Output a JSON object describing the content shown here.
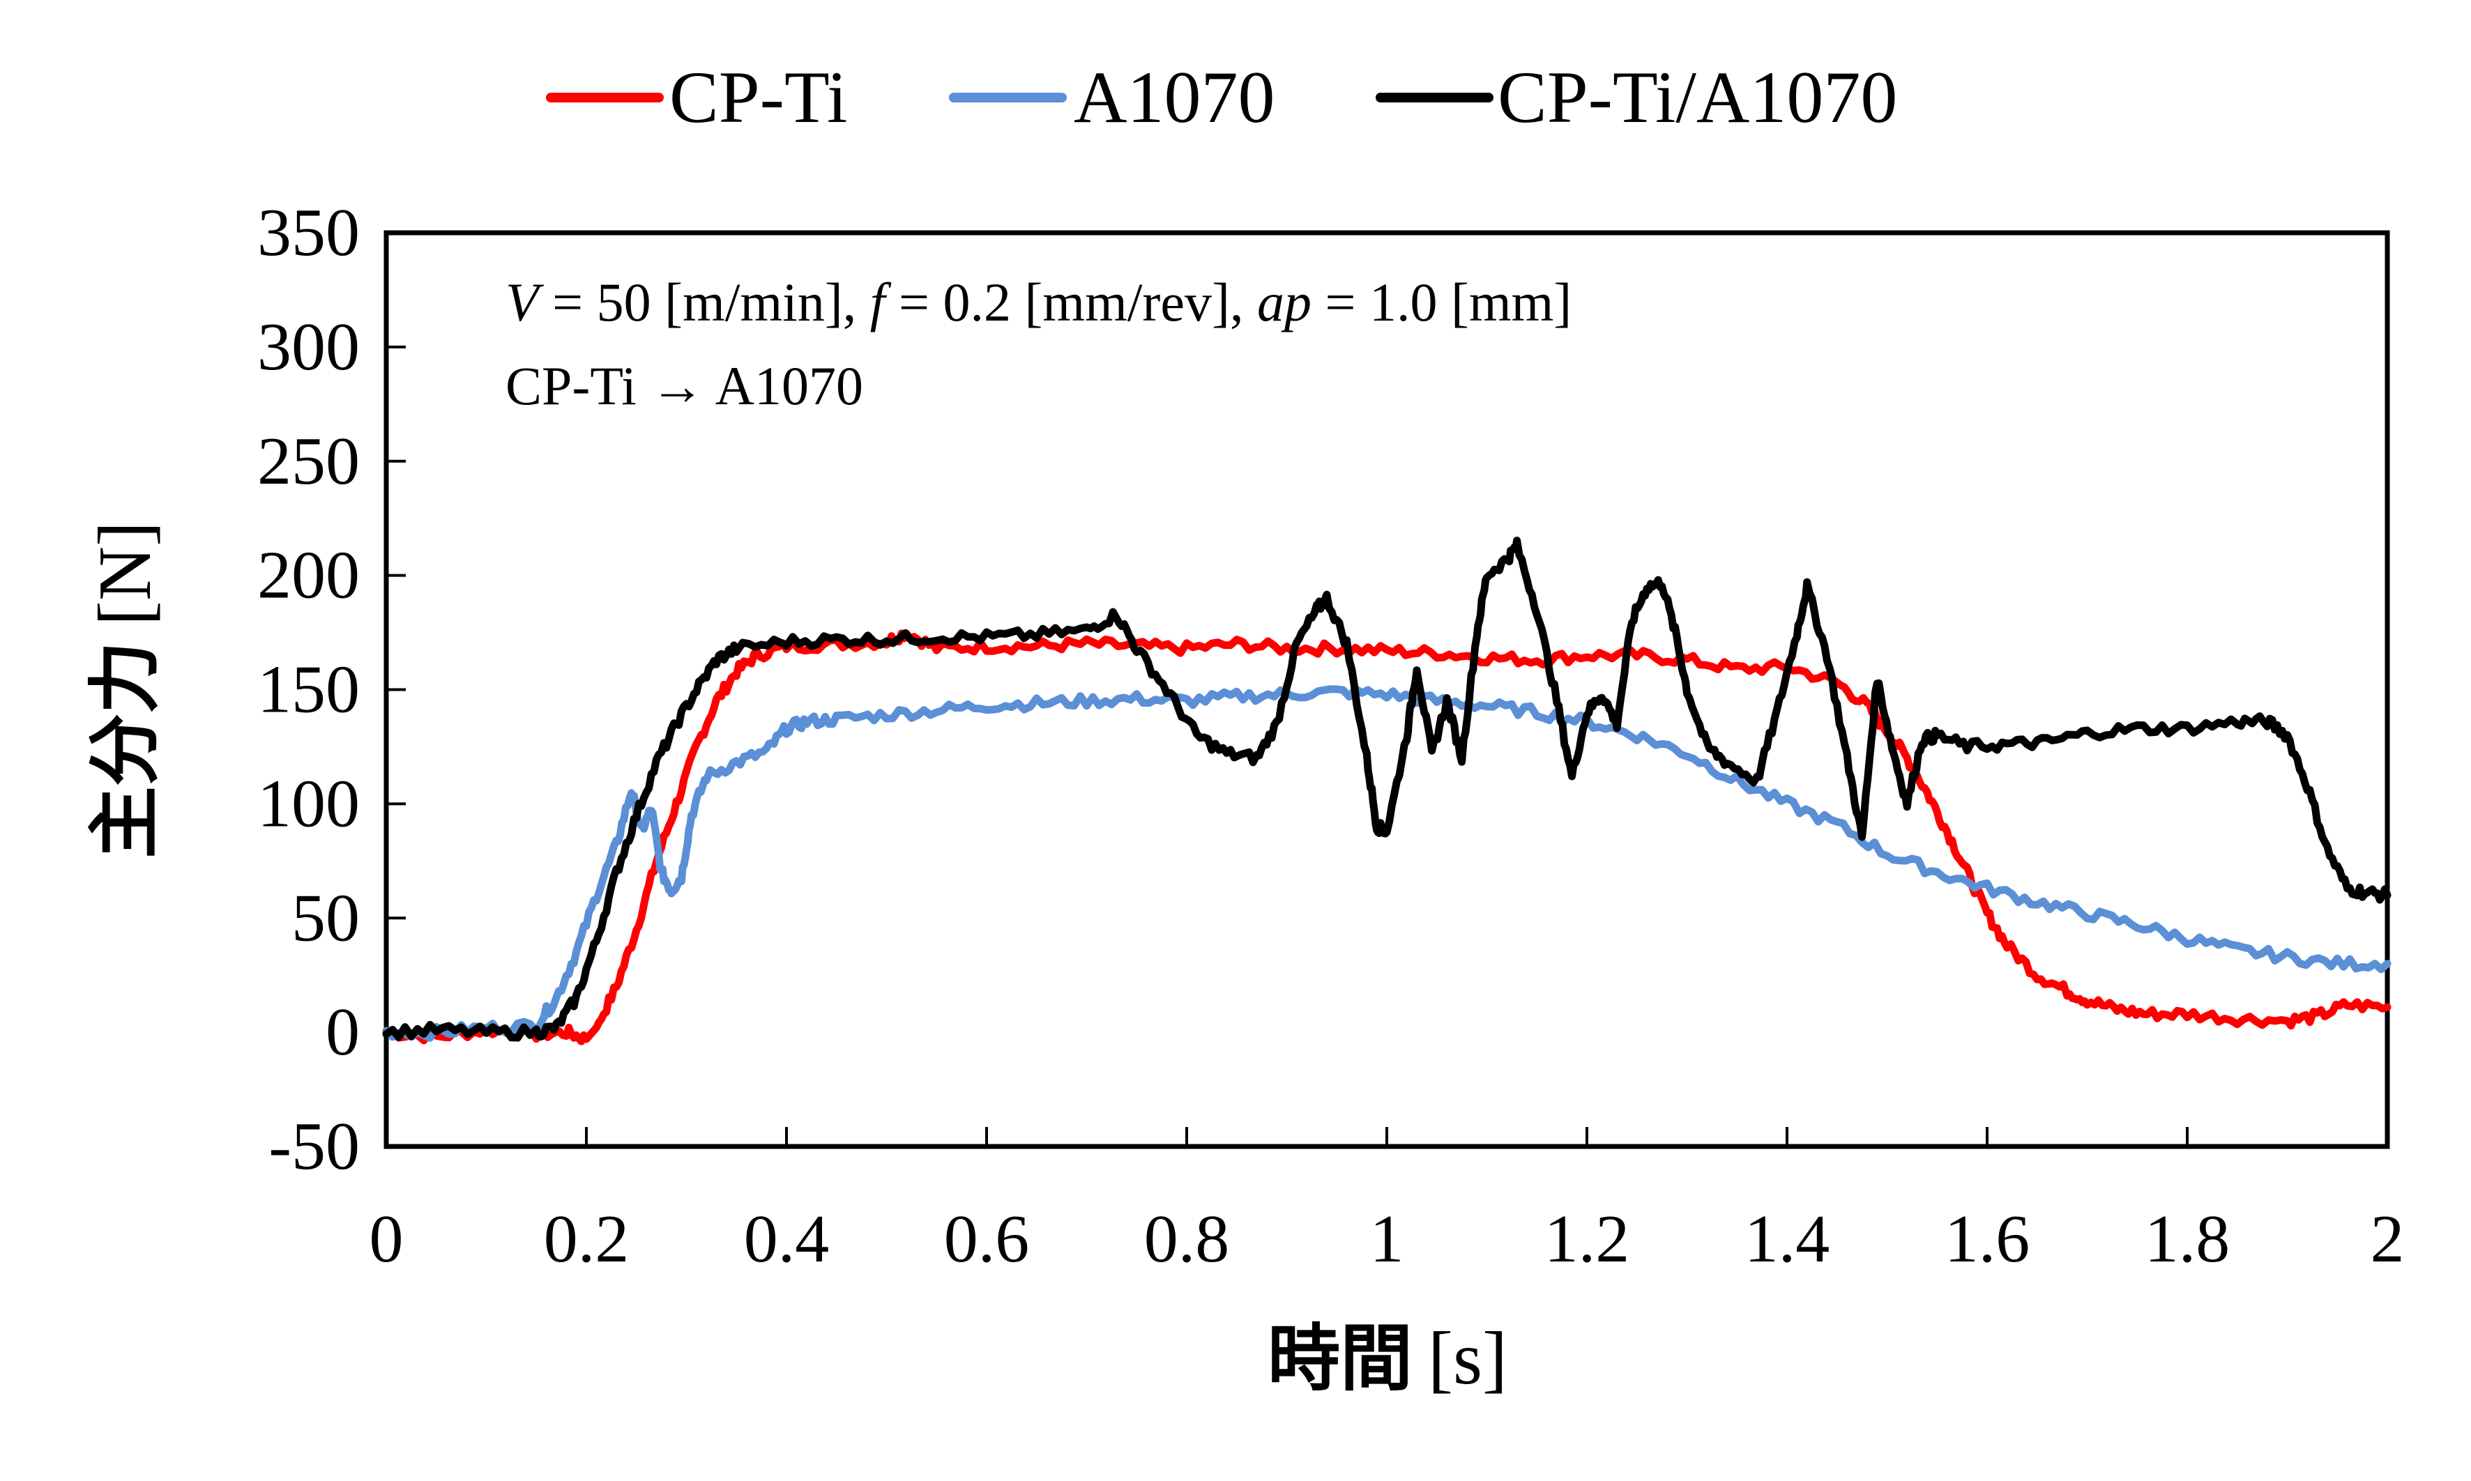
{
  "chart_data": {
    "type": "line",
    "title": "",
    "xlabel_main": "時間",
    "xlabel_unit": "[s]",
    "ylabel_main": "主分力",
    "ylabel_unit": "[N]",
    "xlim": [
      0,
      2
    ],
    "ylim": [
      -50,
      350
    ],
    "xticks": [
      0,
      0.2,
      0.4,
      0.6,
      0.8,
      1,
      1.2,
      1.4,
      1.6,
      1.8,
      2
    ],
    "xtick_labels": [
      "0",
      "0.2",
      "0.4",
      "0.6",
      "0.8",
      "1",
      "1.2",
      "1.4",
      "1.6",
      "1.8",
      "2"
    ],
    "yticks": [
      -50,
      0,
      50,
      100,
      150,
      200,
      250,
      300,
      350
    ],
    "ytick_labels": [
      "-50",
      "0",
      "50",
      "100",
      "150",
      "200",
      "250",
      "300",
      "350"
    ],
    "grid": false,
    "legend_position": "top-center",
    "annotations": [
      {
        "parts": [
          {
            "text": "V",
            "italic": true
          },
          {
            "text": " = 50 [m/min], ",
            "italic": false
          },
          {
            "text": "f",
            "italic": true
          },
          {
            "text": " = 0.2 [mm/rev], ",
            "italic": false
          },
          {
            "text": "ap",
            "italic": true
          },
          {
            "text": " = 1.0 [mm]",
            "italic": false
          }
        ]
      },
      {
        "parts": [
          {
            "text": "CP-Ti → A1070",
            "italic": false
          }
        ]
      }
    ],
    "series": [
      {
        "name": "CP-Ti",
        "color": "#ff0000",
        "points": [
          [
            0,
            0
          ],
          [
            0.05,
            -2
          ],
          [
            0.1,
            1
          ],
          [
            0.15,
            -1
          ],
          [
            0.18,
            0
          ],
          [
            0.2,
            -3
          ],
          [
            0.21,
            2
          ],
          [
            0.23,
            20
          ],
          [
            0.25,
            45
          ],
          [
            0.27,
            75
          ],
          [
            0.29,
            100
          ],
          [
            0.31,
            125
          ],
          [
            0.33,
            145
          ],
          [
            0.35,
            158
          ],
          [
            0.37,
            165
          ],
          [
            0.4,
            169
          ],
          [
            0.45,
            170
          ],
          [
            0.5,
            171
          ],
          [
            0.52,
            175
          ],
          [
            0.55,
            168
          ],
          [
            0.6,
            169
          ],
          [
            0.65,
            169
          ],
          [
            0.7,
            170
          ],
          [
            0.75,
            169
          ],
          [
            0.8,
            168
          ],
          [
            0.85,
            170
          ],
          [
            0.9,
            168
          ],
          [
            0.95,
            168
          ],
          [
            1.0,
            167
          ],
          [
            1.05,
            166
          ],
          [
            1.1,
            164
          ],
          [
            1.15,
            163
          ],
          [
            1.2,
            165
          ],
          [
            1.25,
            165
          ],
          [
            1.3,
            163
          ],
          [
            1.35,
            159
          ],
          [
            1.4,
            160
          ],
          [
            1.45,
            153
          ],
          [
            1.48,
            143
          ],
          [
            1.5,
            132
          ],
          [
            1.52,
            120
          ],
          [
            1.54,
            105
          ],
          [
            1.56,
            88
          ],
          [
            1.58,
            70
          ],
          [
            1.6,
            52
          ],
          [
            1.62,
            38
          ],
          [
            1.65,
            25
          ],
          [
            1.68,
            18
          ],
          [
            1.7,
            14
          ],
          [
            1.73,
            10
          ],
          [
            1.76,
            8
          ],
          [
            1.8,
            8
          ],
          [
            1.85,
            6
          ],
          [
            1.9,
            5
          ],
          [
            1.93,
            7
          ],
          [
            1.96,
            12
          ],
          [
            2.0,
            11
          ]
        ]
      },
      {
        "name": "A1070",
        "color": "#5b8fd6",
        "points": [
          [
            0,
            0
          ],
          [
            0.05,
            0
          ],
          [
            0.1,
            2
          ],
          [
            0.15,
            3
          ],
          [
            0.17,
            15
          ],
          [
            0.19,
            35
          ],
          [
            0.21,
            60
          ],
          [
            0.23,
            82
          ],
          [
            0.245,
            106
          ],
          [
            0.255,
            88
          ],
          [
            0.265,
            98
          ],
          [
            0.275,
            70
          ],
          [
            0.285,
            62
          ],
          [
            0.295,
            68
          ],
          [
            0.305,
            95
          ],
          [
            0.32,
            112
          ],
          [
            0.35,
            118
          ],
          [
            0.38,
            123
          ],
          [
            0.4,
            133
          ],
          [
            0.42,
            136
          ],
          [
            0.45,
            137
          ],
          [
            0.5,
            139
          ],
          [
            0.55,
            141
          ],
          [
            0.6,
            143
          ],
          [
            0.65,
            144
          ],
          [
            0.7,
            145
          ],
          [
            0.75,
            146
          ],
          [
            0.8,
            145
          ],
          [
            0.85,
            147
          ],
          [
            0.9,
            148
          ],
          [
            0.95,
            149
          ],
          [
            1.0,
            148
          ],
          [
            1.05,
            145
          ],
          [
            1.1,
            143
          ],
          [
            1.15,
            140
          ],
          [
            1.2,
            136
          ],
          [
            1.25,
            130
          ],
          [
            1.3,
            122
          ],
          [
            1.35,
            110
          ],
          [
            1.4,
            100
          ],
          [
            1.45,
            91
          ],
          [
            1.5,
            78
          ],
          [
            1.55,
            70
          ],
          [
            1.6,
            63
          ],
          [
            1.65,
            57
          ],
          [
            1.7,
            52
          ],
          [
            1.75,
            47
          ],
          [
            1.8,
            41
          ],
          [
            1.85,
            36
          ],
          [
            1.9,
            33
          ],
          [
            1.95,
            30
          ],
          [
            2.0,
            30
          ]
        ]
      },
      {
        "name": "CP-Ti/A1070",
        "color": "#000000",
        "points": [
          [
            0,
            0
          ],
          [
            0.05,
            1
          ],
          [
            0.1,
            0
          ],
          [
            0.15,
            0
          ],
          [
            0.17,
            2
          ],
          [
            0.19,
            15
          ],
          [
            0.21,
            40
          ],
          [
            0.23,
            70
          ],
          [
            0.25,
            95
          ],
          [
            0.27,
            118
          ],
          [
            0.29,
            135
          ],
          [
            0.31,
            150
          ],
          [
            0.33,
            163
          ],
          [
            0.35,
            168
          ],
          [
            0.4,
            171
          ],
          [
            0.45,
            172
          ],
          [
            0.5,
            172
          ],
          [
            0.55,
            173
          ],
          [
            0.6,
            173
          ],
          [
            0.65,
            174
          ],
          [
            0.7,
            176
          ],
          [
            0.73,
            183
          ],
          [
            0.75,
            168
          ],
          [
            0.78,
            150
          ],
          [
            0.81,
            130
          ],
          [
            0.84,
            122
          ],
          [
            0.87,
            120
          ],
          [
            0.89,
            135
          ],
          [
            0.91,
            170
          ],
          [
            0.93,
            185
          ],
          [
            0.94,
            190
          ],
          [
            0.96,
            170
          ],
          [
            0.98,
            120
          ],
          [
            0.99,
            90
          ],
          [
            1.0,
            88
          ],
          [
            1.02,
            130
          ],
          [
            1.03,
            160
          ],
          [
            1.045,
            122
          ],
          [
            1.06,
            145
          ],
          [
            1.075,
            120
          ],
          [
            1.09,
            175
          ],
          [
            1.1,
            200
          ],
          [
            1.12,
            207
          ],
          [
            1.13,
            213
          ],
          [
            1.15,
            185
          ],
          [
            1.17,
            145
          ],
          [
            1.185,
            112
          ],
          [
            1.2,
            140
          ],
          [
            1.215,
            148
          ],
          [
            1.23,
            135
          ],
          [
            1.245,
            180
          ],
          [
            1.26,
            195
          ],
          [
            1.275,
            197
          ],
          [
            1.29,
            172
          ],
          [
            1.3,
            150
          ],
          [
            1.32,
            125
          ],
          [
            1.34,
            118
          ],
          [
            1.37,
            110
          ],
          [
            1.39,
            140
          ],
          [
            1.41,
            175
          ],
          [
            1.42,
            195
          ],
          [
            1.44,
            165
          ],
          [
            1.46,
            120
          ],
          [
            1.475,
            85
          ],
          [
            1.49,
            155
          ],
          [
            1.505,
            125
          ],
          [
            1.52,
            100
          ],
          [
            1.535,
            128
          ],
          [
            1.55,
            130
          ],
          [
            1.58,
            125
          ],
          [
            1.62,
            126
          ],
          [
            1.66,
            127
          ],
          [
            1.7,
            131
          ],
          [
            1.75,
            133
          ],
          [
            1.8,
            133
          ],
          [
            1.85,
            136
          ],
          [
            1.88,
            136
          ],
          [
            1.9,
            130
          ],
          [
            1.92,
            108
          ],
          [
            1.94,
            80
          ],
          [
            1.96,
            63
          ],
          [
            1.98,
            61
          ],
          [
            2.0,
            60
          ]
        ]
      }
    ]
  }
}
